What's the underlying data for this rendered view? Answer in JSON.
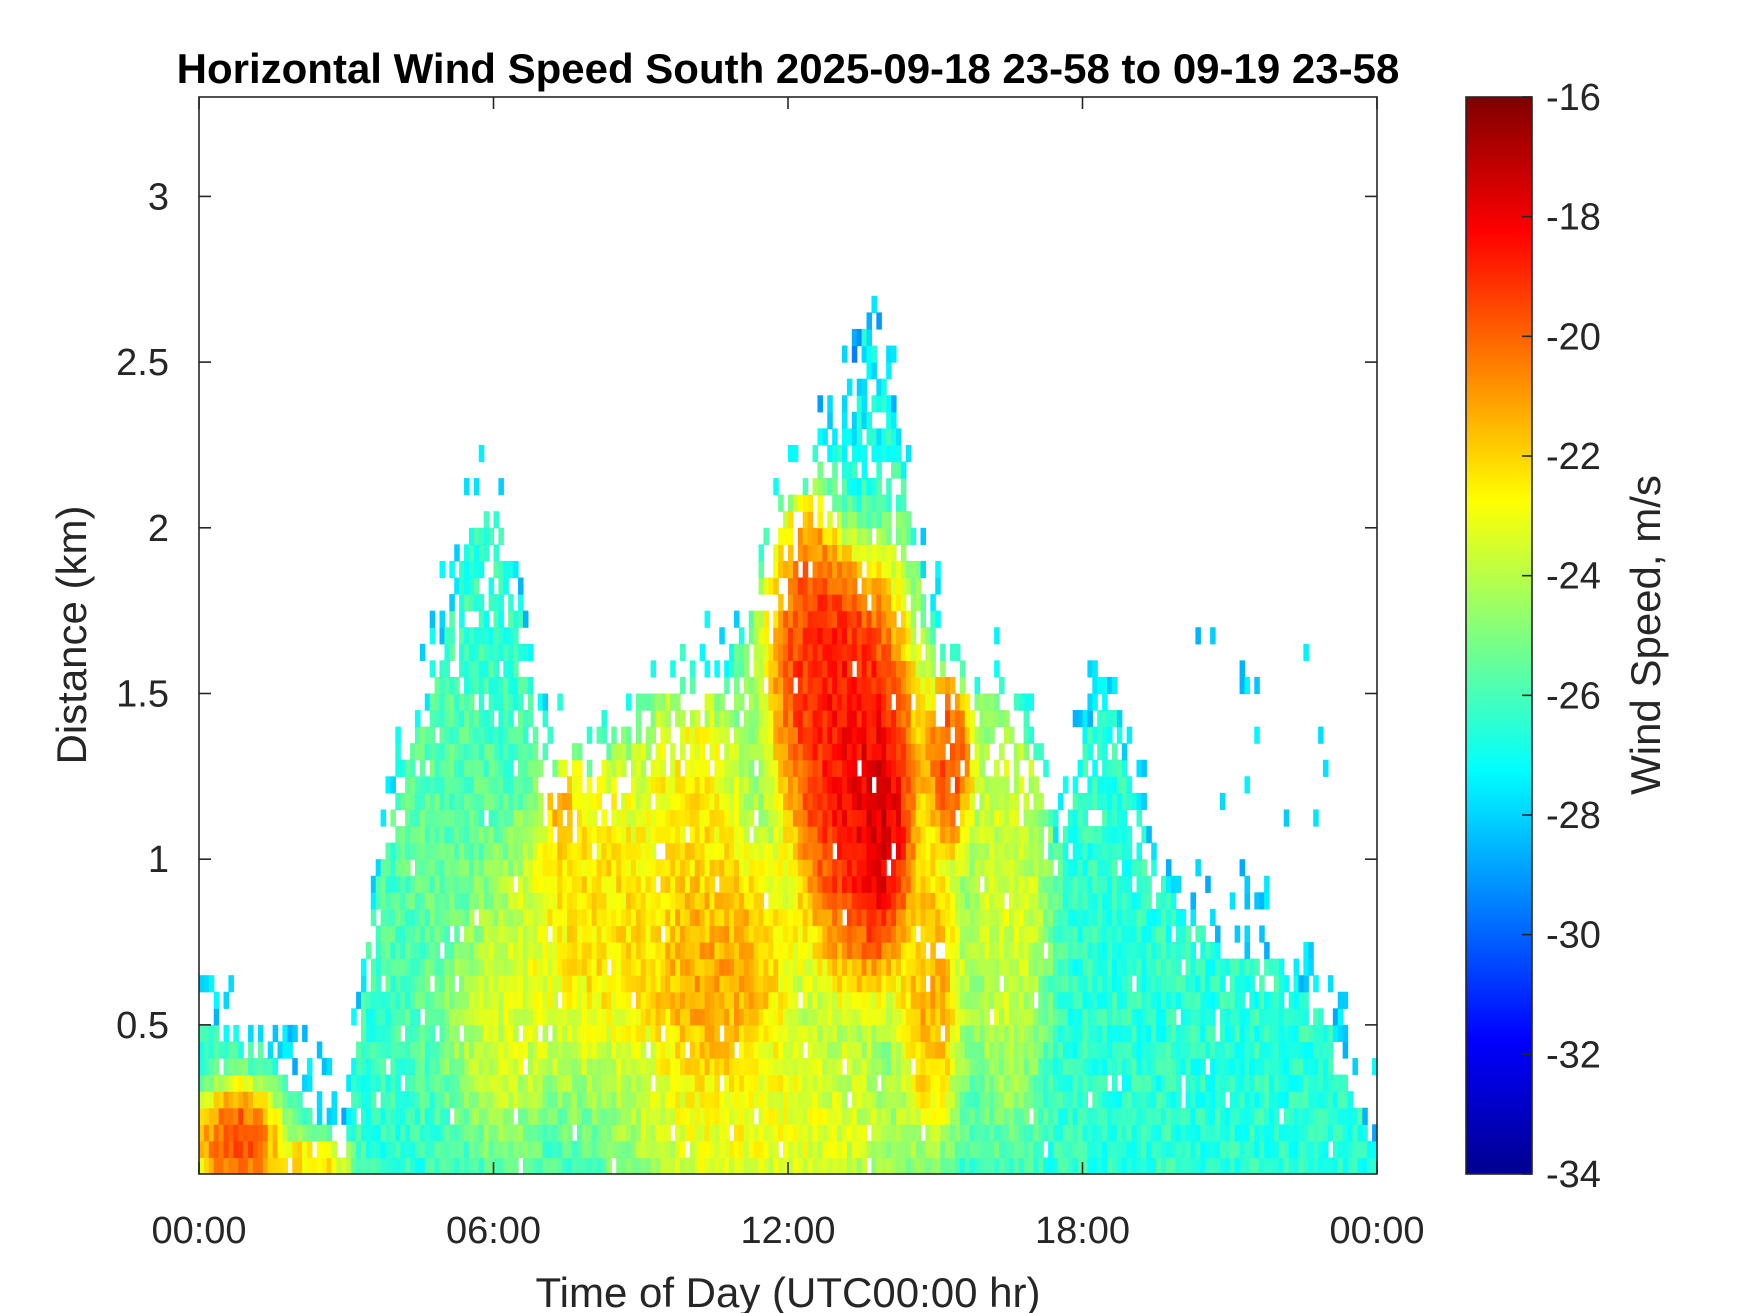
{
  "chart_data": {
    "type": "heatmap",
    "title": "Horizontal Wind Speed South 2025-09-18 23-58 to 09-19 23-58",
    "xlabel": "Time of Day (UTC00:00 hr)",
    "ylabel": "Distance (km)",
    "xlim": [
      0,
      24
    ],
    "ylim": [
      0.05,
      3.3
    ],
    "x_ticks": [
      {
        "value": 0,
        "label": "00:00"
      },
      {
        "value": 6,
        "label": "06:00"
      },
      {
        "value": 12,
        "label": "12:00"
      },
      {
        "value": 18,
        "label": "18:00"
      },
      {
        "value": 24,
        "label": "00:00"
      }
    ],
    "y_ticks": [
      {
        "value": 0.5,
        "label": "0.5"
      },
      {
        "value": 1,
        "label": "1"
      },
      {
        "value": 1.5,
        "label": "1.5"
      },
      {
        "value": 2,
        "label": "2"
      },
      {
        "value": 2.5,
        "label": "2.5"
      },
      {
        "value": 3,
        "label": "3"
      }
    ],
    "colorbar": {
      "label": "Wind Speed, m/s",
      "min": -34,
      "max": -16,
      "colormap": "jet",
      "ticks": [
        {
          "value": -16,
          "label": "-16"
        },
        {
          "value": -18,
          "label": "-18"
        },
        {
          "value": -20,
          "label": "-20"
        },
        {
          "value": -22,
          "label": "-22"
        },
        {
          "value": -24,
          "label": "-24"
        },
        {
          "value": -26,
          "label": "-26"
        },
        {
          "value": -28,
          "label": "-28"
        },
        {
          "value": -30,
          "label": "-30"
        },
        {
          "value": -32,
          "label": "-32"
        },
        {
          "value": -34,
          "label": "-34"
        }
      ]
    },
    "x_step_hours": 0.1,
    "y_step_km": 0.05,
    "envelope_top_km": [
      [
        0,
        0.58
      ],
      [
        0.5,
        0.5
      ],
      [
        1,
        0.45
      ],
      [
        1.5,
        0.4
      ],
      [
        2,
        0.3
      ],
      [
        2.5,
        0.2
      ],
      [
        3,
        0.12
      ],
      [
        3.3,
        0.55
      ],
      [
        3.6,
        0.9
      ],
      [
        4,
        1.2
      ],
      [
        4.5,
        1.4
      ],
      [
        5,
        1.65
      ],
      [
        5.5,
        2.0
      ],
      [
        6,
        2.05
      ],
      [
        6.5,
        1.85
      ],
      [
        7,
        1.25
      ],
      [
        7.5,
        1.3
      ],
      [
        8,
        1.25
      ],
      [
        8.5,
        1.35
      ],
      [
        9,
        1.5
      ],
      [
        9.5,
        1.5
      ],
      [
        10,
        1.45
      ],
      [
        10.5,
        1.5
      ],
      [
        11,
        1.65
      ],
      [
        11.5,
        1.85
      ],
      [
        12,
        2.05
      ],
      [
        12.5,
        2.15
      ],
      [
        13,
        2.3
      ],
      [
        13.5,
        2.6
      ],
      [
        14,
        2.45
      ],
      [
        14.5,
        2.0
      ],
      [
        15,
        1.6
      ],
      [
        15.5,
        1.5
      ],
      [
        16,
        1.5
      ],
      [
        16.5,
        1.45
      ],
      [
        17,
        1.3
      ],
      [
        17.5,
        1.0
      ],
      [
        18,
        1.35
      ],
      [
        18.5,
        1.55
      ],
      [
        19,
        1.2
      ],
      [
        19.5,
        1.0
      ],
      [
        20,
        0.85
      ],
      [
        21,
        0.7
      ],
      [
        22,
        0.7
      ],
      [
        23,
        0.5
      ],
      [
        24,
        0.1
      ]
    ],
    "features": [
      {
        "t": 0.8,
        "h": 0.15,
        "st": 0.6,
        "sh": 0.12,
        "v": -18.5
      },
      {
        "t": 2.2,
        "h": 0.08,
        "st": 0.6,
        "sh": 0.06,
        "v": -21.5
      },
      {
        "t": 5.0,
        "h": 1.0,
        "st": 1.0,
        "sh": 0.45,
        "v": -25.5
      },
      {
        "t": 6.2,
        "h": 0.6,
        "st": 0.9,
        "sh": 0.3,
        "v": -22.8
      },
      {
        "t": 8.0,
        "h": 0.85,
        "st": 1.0,
        "sh": 0.35,
        "v": -21.5
      },
      {
        "t": 7.4,
        "h": 1.15,
        "st": 0.25,
        "sh": 0.1,
        "v": -20.5
      },
      {
        "t": 10.5,
        "h": 0.65,
        "st": 1.2,
        "sh": 0.3,
        "v": -20.3
      },
      {
        "t": 10.0,
        "h": 1.1,
        "st": 0.8,
        "sh": 0.3,
        "v": -21.8
      },
      {
        "t": 11.5,
        "h": 0.2,
        "st": 2.0,
        "sh": 0.2,
        "v": -22.5
      },
      {
        "t": 12.7,
        "h": 1.6,
        "st": 0.8,
        "sh": 0.35,
        "v": -18.0
      },
      {
        "t": 13.4,
        "h": 1.25,
        "st": 0.9,
        "sh": 0.45,
        "v": -17.2
      },
      {
        "t": 13.9,
        "h": 1.1,
        "st": 0.4,
        "sh": 0.25,
        "v": -16.3
      },
      {
        "t": 15.3,
        "h": 1.3,
        "st": 0.35,
        "sh": 0.2,
        "v": -18.5
      },
      {
        "t": 14.9,
        "h": 0.6,
        "st": 0.45,
        "sh": 0.3,
        "v": -20.5
      },
      {
        "t": 13.3,
        "h": 2.3,
        "st": 0.5,
        "sh": 0.3,
        "v": -27.5
      },
      {
        "t": 16.5,
        "h": 0.9,
        "st": 0.6,
        "sh": 0.45,
        "v": -23.0
      },
      {
        "t": 18.5,
        "h": 0.8,
        "st": 0.7,
        "sh": 0.45,
        "v": -26.5
      },
      {
        "t": 3.6,
        "h": 2.45,
        "st": 0.08,
        "sh": 0.12,
        "v": -20.5
      }
    ],
    "background_value": -26.5
  }
}
